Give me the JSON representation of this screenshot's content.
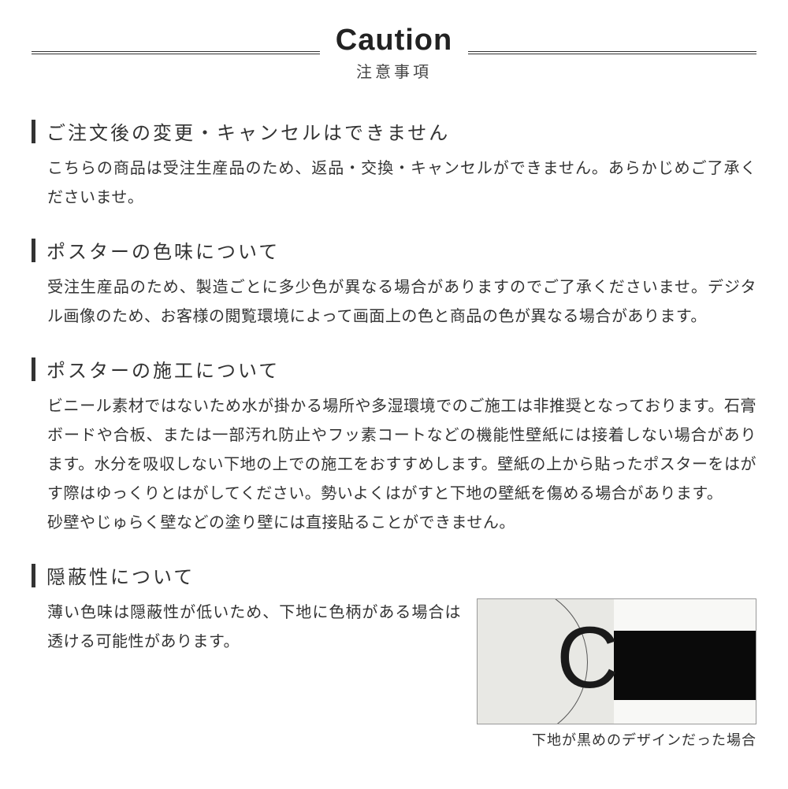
{
  "header": {
    "title_en": "Caution",
    "title_jp": "注意事項"
  },
  "sections": [
    {
      "title": "ご注文後の変更・キャンセルはできません",
      "body": "こちらの商品は受注生産品のため、返品・交換・キャンセルができません。あらかじめご了承くださいませ。"
    },
    {
      "title": "ポスターの色味について",
      "body": "受注生産品のため、製造ごとに多少色が異なる場合がありますのでご了承くださいませ。デジタル画像のため、お客様の閲覧環境によって画面上の色と商品の色が異なる場合があります。"
    },
    {
      "title": "ポスターの施工について",
      "body": "ビニール素材ではないため水が掛かる場所や多湿環境でのご施工は非推奨となっております。石膏ボードや合板、または一部汚れ防止やフッ素コートなどの機能性壁紙には接着しない場合があります。水分を吸収しない下地の上での施工をおすすめします。壁紙の上から貼ったポスターをはがす際はゆっくりとはがしてください。勢いよくはがすと下地の壁紙を傷める場合があります。\n砂壁やじゅらく壁などの塗り壁には直接貼ることができません。"
    },
    {
      "title": "隠蔽性について",
      "body": "薄い色味は隠蔽性が低いため、下地に色柄がある場合は透ける可能性があります。"
    }
  ],
  "figure": {
    "letter": "C",
    "caption": "下地が黒めのデザインだった場合",
    "colors": {
      "left_bg": "#e8e8e4",
      "right_white": "#f8f8f6",
      "right_black": "#0a0a0a",
      "border": "#999999"
    }
  },
  "style": {
    "text_color": "#333333",
    "bar_color": "#333333",
    "background": "#ffffff"
  }
}
